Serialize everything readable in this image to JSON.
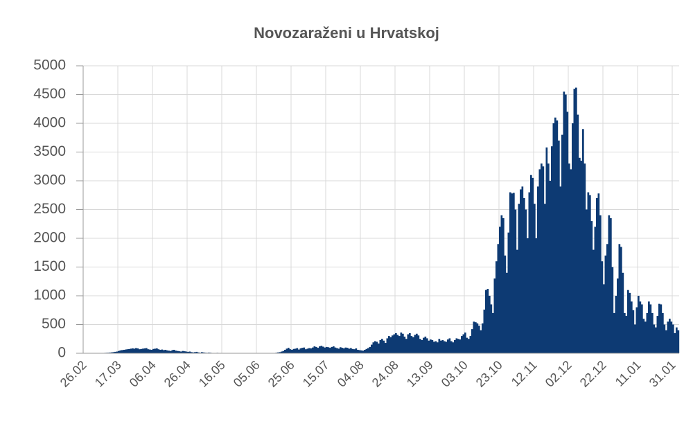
{
  "chart_data": {
    "type": "bar",
    "title": "Novozaraženi u Hrvatskoj",
    "categories": [
      "26.02",
      null,
      null,
      null,
      null,
      null,
      null,
      null,
      null,
      null,
      null,
      null,
      null,
      null,
      null,
      null,
      null,
      null,
      null,
      null,
      "17.03",
      null,
      null,
      null,
      null,
      null,
      null,
      null,
      null,
      null,
      null,
      null,
      null,
      null,
      null,
      null,
      null,
      null,
      null,
      null,
      "06.04",
      null,
      null,
      null,
      null,
      null,
      null,
      null,
      null,
      null,
      null,
      null,
      null,
      null,
      null,
      null,
      null,
      null,
      null,
      null,
      "26.04",
      null,
      null,
      null,
      null,
      null,
      null,
      null,
      null,
      null,
      null,
      null,
      null,
      null,
      null,
      null,
      null,
      null,
      null,
      null,
      "16.05",
      null,
      null,
      null,
      null,
      null,
      null,
      null,
      null,
      null,
      null,
      null,
      null,
      null,
      null,
      null,
      null,
      null,
      null,
      null,
      "05.06",
      null,
      null,
      null,
      null,
      null,
      null,
      null,
      null,
      null,
      null,
      null,
      null,
      null,
      null,
      null,
      null,
      null,
      null,
      null,
      "25.06",
      null,
      null,
      null,
      null,
      null,
      null,
      null,
      null,
      null,
      null,
      null,
      null,
      null,
      null,
      null,
      null,
      null,
      null,
      null,
      "15.07",
      null,
      null,
      null,
      null,
      null,
      null,
      null,
      null,
      null,
      null,
      null,
      null,
      null,
      null,
      null,
      null,
      null,
      null,
      null,
      "04.08",
      null,
      null,
      null,
      null,
      null,
      null,
      null,
      null,
      null,
      null,
      null,
      null,
      null,
      null,
      null,
      null,
      null,
      null,
      null,
      "24.08",
      null,
      null,
      null,
      null,
      null,
      null,
      null,
      null,
      null,
      null,
      null,
      null,
      null,
      null,
      null,
      null,
      null,
      null,
      null,
      "13.09",
      null,
      null,
      null,
      null,
      null,
      null,
      null,
      null,
      null,
      null,
      null,
      null,
      null,
      null,
      null,
      null,
      null,
      null,
      null,
      "03.10",
      null,
      null,
      null,
      null,
      null,
      null,
      null,
      null,
      null,
      null,
      null,
      null,
      null,
      null,
      null,
      null,
      null,
      null,
      null,
      "23.10",
      null,
      null,
      null,
      null,
      null,
      null,
      null,
      null,
      null,
      null,
      null,
      null,
      null,
      null,
      null,
      null,
      null,
      null,
      null,
      "12.11",
      null,
      null,
      null,
      null,
      null,
      null,
      null,
      null,
      null,
      null,
      null,
      null,
      null,
      null,
      null,
      null,
      null,
      null,
      null,
      "02.12",
      null,
      null,
      null,
      null,
      null,
      null,
      null,
      null,
      null,
      null,
      null,
      null,
      null,
      null,
      null,
      null,
      null,
      null,
      null,
      "22.12",
      null,
      null,
      null,
      null,
      null,
      null,
      null,
      null,
      null,
      null,
      null,
      null,
      null,
      null,
      null,
      null,
      null,
      null,
      null,
      "11.01",
      null,
      null,
      null,
      null,
      null,
      null,
      null,
      null,
      null,
      null,
      null,
      null,
      null,
      null,
      null,
      null,
      null,
      null,
      null,
      "31.01",
      null,
      null,
      null
    ],
    "values": [
      0,
      1,
      2,
      1,
      2,
      3,
      3,
      2,
      1,
      3,
      5,
      3,
      7,
      9,
      10,
      13,
      16,
      20,
      25,
      30,
      40,
      50,
      55,
      60,
      65,
      70,
      73,
      80,
      85,
      80,
      90,
      85,
      70,
      75,
      80,
      85,
      90,
      70,
      65,
      60,
      75,
      80,
      85,
      70,
      60,
      65,
      55,
      60,
      50,
      45,
      40,
      55,
      60,
      45,
      40,
      35,
      30,
      40,
      35,
      30,
      25,
      30,
      20,
      15,
      20,
      25,
      15,
      10,
      20,
      15,
      10,
      8,
      12,
      10,
      6,
      5,
      4,
      8,
      6,
      3,
      3,
      5,
      2,
      4,
      1,
      2,
      3,
      2,
      1,
      0,
      1,
      0,
      2,
      1,
      0,
      3,
      1,
      0,
      1,
      2,
      0,
      1,
      2,
      1,
      3,
      2,
      1,
      4,
      3,
      5,
      6,
      10,
      15,
      20,
      30,
      40,
      60,
      80,
      95,
      70,
      60,
      75,
      80,
      90,
      65,
      85,
      95,
      100,
      70,
      80,
      90,
      85,
      100,
      120,
      110,
      95,
      120,
      130,
      115,
      100,
      110,
      105,
      95,
      110,
      120,
      100,
      90,
      80,
      105,
      95,
      85,
      100,
      95,
      80,
      90,
      75,
      70,
      85,
      60,
      55,
      50,
      45,
      60,
      75,
      90,
      110,
      150,
      190,
      210,
      200,
      170,
      230,
      250,
      220,
      180,
      260,
      300,
      280,
      310,
      330,
      350,
      320,
      300,
      360,
      340,
      290,
      250,
      330,
      350,
      300,
      280,
      320,
      340,
      310,
      250,
      230,
      270,
      290,
      260,
      220,
      240,
      230,
      200,
      210,
      190,
      250,
      220,
      230,
      210,
      200,
      240,
      260,
      210,
      190,
      230,
      260,
      250,
      240,
      300,
      330,
      360,
      270,
      250,
      300,
      420,
      550,
      540,
      520,
      480,
      400,
      520,
      760,
      1100,
      1120,
      1000,
      850,
      700,
      1300,
      1600,
      1900,
      2200,
      2400,
      2350,
      1700,
      1400,
      2100,
      2800,
      2780,
      2790,
      2500,
      1800,
      2600,
      2850,
      2900,
      2700,
      2500,
      2000,
      2800,
      3100,
      3050,
      2600,
      2000,
      2900,
      3200,
      3300,
      3250,
      2600,
      3580,
      3300,
      3000,
      3600,
      4000,
      4100,
      4050,
      3700,
      2900,
      3800,
      4550,
      4500,
      4200,
      3300,
      3200,
      4000,
      4600,
      4620,
      4150,
      3400,
      3350,
      3900,
      3300,
      2500,
      2800,
      2750,
      2300,
      1800,
      2200,
      2700,
      2780,
      2400,
      1600,
      1200,
      1700,
      1900,
      2400,
      2350,
      1500,
      700,
      1000,
      1300,
      1900,
      1850,
      1400,
      700,
      650,
      1100,
      1050,
      900,
      750,
      500,
      800,
      1000,
      900,
      850,
      600,
      550,
      700,
      900,
      850,
      700,
      500,
      450,
      650,
      860,
      850,
      700,
      500,
      400,
      550,
      600,
      550,
      500,
      350,
      450,
      400
    ],
    "color": "#0d3a73",
    "ylim": [
      0,
      5000
    ],
    "yticks": [
      0,
      500,
      1000,
      1500,
      2000,
      2500,
      3000,
      3500,
      4000,
      4500,
      5000
    ],
    "grid": true
  }
}
